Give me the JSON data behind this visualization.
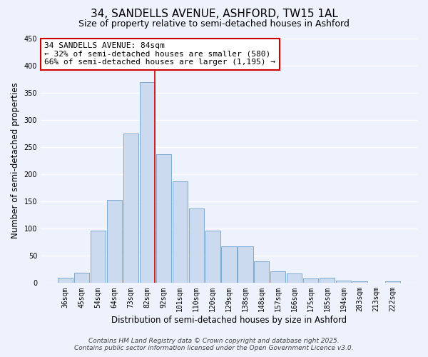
{
  "title": "34, SANDELLS AVENUE, ASHFORD, TW15 1AL",
  "subtitle": "Size of property relative to semi-detached houses in Ashford",
  "xlabel": "Distribution of semi-detached houses by size in Ashford",
  "ylabel": "Number of semi-detached properties",
  "bar_labels": [
    "36sqm",
    "45sqm",
    "54sqm",
    "64sqm",
    "73sqm",
    "82sqm",
    "92sqm",
    "101sqm",
    "110sqm",
    "120sqm",
    "129sqm",
    "138sqm",
    "148sqm",
    "157sqm",
    "166sqm",
    "175sqm",
    "185sqm",
    "194sqm",
    "203sqm",
    "213sqm",
    "222sqm"
  ],
  "bar_values": [
    9,
    19,
    97,
    153,
    275,
    370,
    237,
    187,
    137,
    96,
    68,
    67,
    40,
    22,
    17,
    8,
    10,
    5,
    3,
    1,
    3
  ],
  "bar_color": "#ccdaf0",
  "bar_edge_color": "#7aaad0",
  "highlight_bar_idx": 5,
  "highlight_line_color": "#cc0000",
  "annotation_line1": "34 SANDELLS AVENUE: 84sqm",
  "annotation_line2": "← 32% of semi-detached houses are smaller (580)",
  "annotation_line3": "66% of semi-detached houses are larger (1,195) →",
  "annotation_box_color": "#ffffff",
  "annotation_box_edge": "#cc0000",
  "ylim": [
    0,
    450
  ],
  "yticks": [
    0,
    50,
    100,
    150,
    200,
    250,
    300,
    350,
    400,
    450
  ],
  "footer_line1": "Contains HM Land Registry data © Crown copyright and database right 2025.",
  "footer_line2": "Contains public sector information licensed under the Open Government Licence v3.0.",
  "bg_color": "#eef2fc",
  "plot_bg_color": "#eef2fc",
  "grid_color": "#ffffff",
  "title_fontsize": 11,
  "subtitle_fontsize": 9,
  "axis_label_fontsize": 8.5,
  "tick_fontsize": 7,
  "annotation_fontsize": 8,
  "footer_fontsize": 6.5
}
